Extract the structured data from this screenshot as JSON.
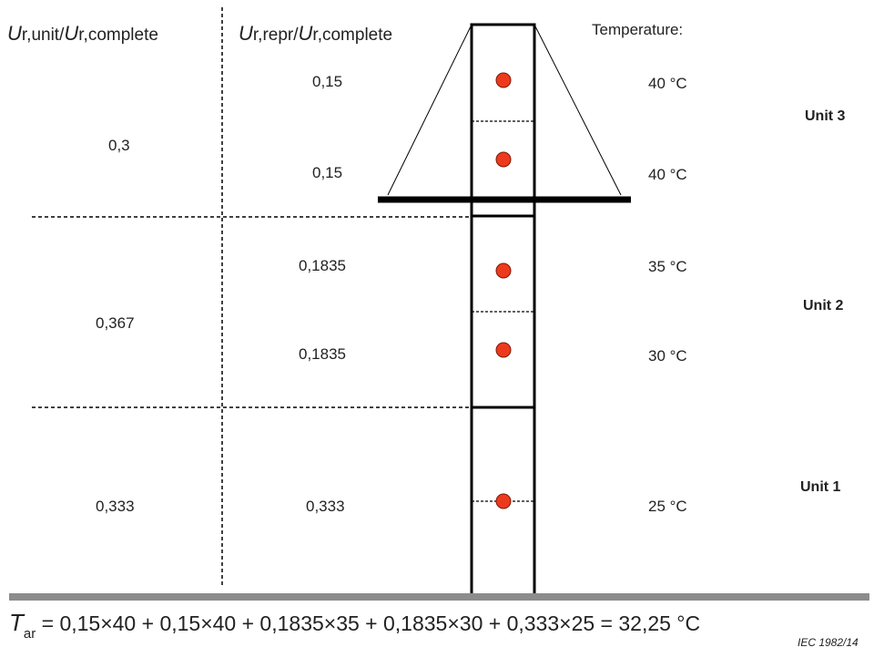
{
  "headers": {
    "col1": {
      "U": "U",
      "sub1": "r,unit",
      "slash": "/",
      "U2": "U",
      "sub2": "r,complete"
    },
    "col2": {
      "U": "U",
      "sub1": "r,repr",
      "slash": "/",
      "U2": "U",
      "sub2": "r,complete"
    },
    "temperature": "Temperature:"
  },
  "units": {
    "unit3": {
      "label": "Unit 3",
      "ratio": "0,3",
      "repr": [
        "0,15",
        "0,15"
      ],
      "temps": [
        "40 °C",
        "40 °C"
      ]
    },
    "unit2": {
      "label": "Unit 2",
      "ratio": "0,367",
      "repr": [
        "0,1835",
        "0,1835"
      ],
      "temps": [
        "35 °C",
        "30 °C"
      ]
    },
    "unit1": {
      "label": "Unit 1",
      "ratio": "0,333",
      "repr": [
        "0,333"
      ],
      "temps": [
        "25 °C"
      ]
    }
  },
  "formula": {
    "T": "T",
    "sub": "ar",
    "rhs": " = 0,15×40 + 0,15×40 + 0,1835×35 + 0,1835×30 + 0,333×25 = 32,25 °C"
  },
  "footer": {
    "iec": "IEC  1982/14"
  },
  "colors": {
    "dot": "#ee3a1c",
    "line": "#000000",
    "ground": "#8c8c8c"
  }
}
